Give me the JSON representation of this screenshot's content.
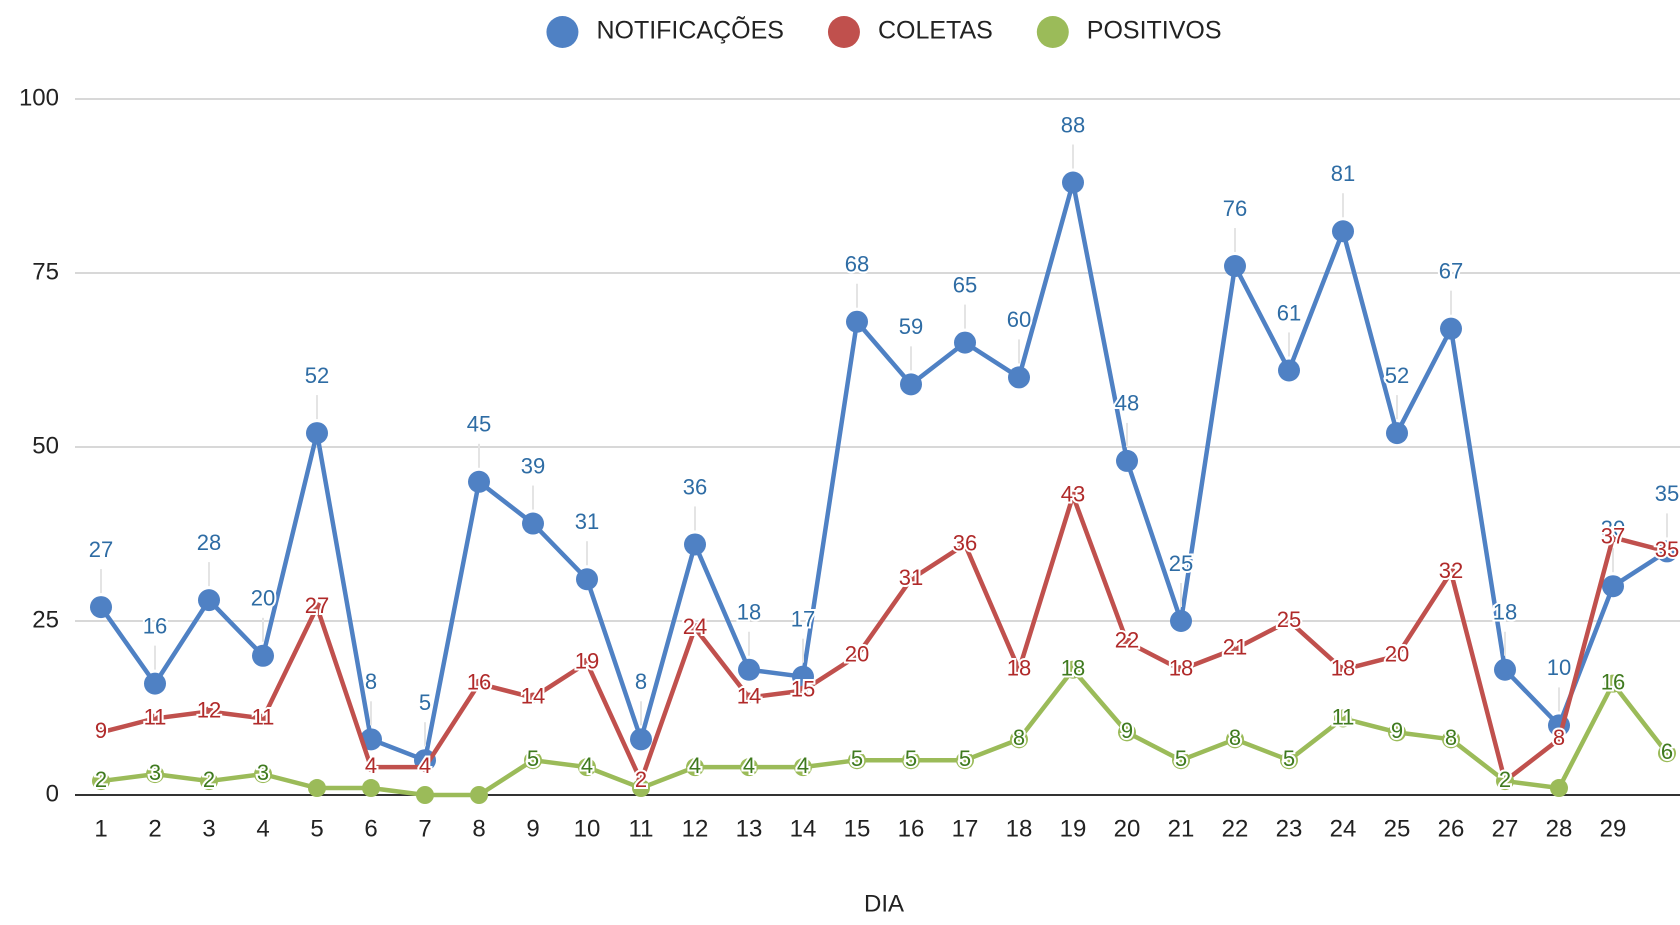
{
  "chart_data": {
    "type": "line",
    "x_label": "DIA",
    "categories": [
      "1",
      "2",
      "3",
      "4",
      "5",
      "6",
      "7",
      "8",
      "9",
      "10",
      "11",
      "12",
      "13",
      "14",
      "15",
      "16",
      "17",
      "18",
      "19",
      "20",
      "21",
      "22",
      "23",
      "24",
      "25",
      "26",
      "27",
      "28",
      "29",
      null
    ],
    "series": [
      {
        "name": "NOTIFICAÇÕES",
        "color": "#4f81c4",
        "label_color": "#2e6ca4",
        "values": [
          27,
          16,
          28,
          20,
          52,
          8,
          5,
          45,
          39,
          31,
          8,
          36,
          18,
          17,
          68,
          59,
          65,
          60,
          88,
          48,
          25,
          76,
          61,
          81,
          52,
          67,
          18,
          10,
          30,
          35
        ]
      },
      {
        "name": "COLETAS",
        "color": "#c0504d",
        "label_color": "#b02a2a",
        "values": [
          9,
          11,
          12,
          11,
          27,
          4,
          4,
          16,
          14,
          19,
          2,
          24,
          14,
          15,
          20,
          31,
          36,
          18,
          43,
          22,
          18,
          21,
          25,
          18,
          20,
          32,
          2,
          8,
          37,
          35
        ]
      },
      {
        "name": "POSITIVOS",
        "color": "#9bbb59",
        "label_color": "#3f7a1f",
        "values": [
          2,
          3,
          2,
          3,
          1,
          1,
          0,
          0,
          5,
          4,
          1,
          4,
          4,
          4,
          5,
          5,
          5,
          8,
          18,
          9,
          5,
          8,
          5,
          11,
          9,
          8,
          2,
          1,
          16,
          6
        ],
        "value_labels": [
          "2",
          "3",
          "2",
          "3",
          null,
          null,
          null,
          null,
          "5",
          "4",
          null,
          "4",
          "4",
          "4",
          "5",
          "5",
          "5",
          "8",
          "18",
          "9",
          "5",
          "8",
          "5",
          "11",
          "9",
          "8",
          "2",
          null,
          "16",
          "6"
        ]
      }
    ],
    "ylim": [
      0,
      100
    ],
    "yticks": [
      0,
      25,
      50,
      75,
      100
    ],
    "grid": true,
    "legend": "top"
  }
}
